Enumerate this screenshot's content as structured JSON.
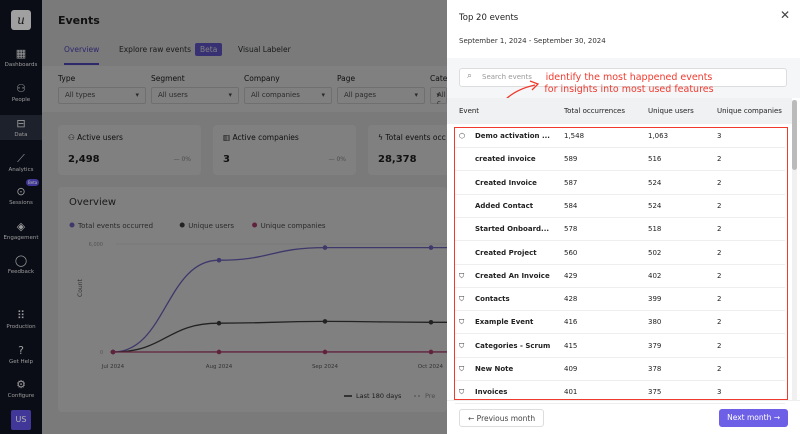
{
  "sidebar": {
    "logo": "u",
    "items": [
      {
        "label": "Dashboards",
        "icon": "▦"
      },
      {
        "label": "People",
        "icon": "⚇"
      },
      {
        "label": "Data",
        "icon": "⊟"
      },
      {
        "label": "Analytics",
        "icon": "⟋"
      },
      {
        "label": "Sessions",
        "icon": "⊙",
        "badge": "Beta"
      },
      {
        "label": "Engagement",
        "icon": "◈"
      },
      {
        "label": "Feedback",
        "icon": "◯"
      },
      {
        "label": "Production",
        "icon": "⠿"
      },
      {
        "label": "Get Help",
        "icon": "?"
      },
      {
        "label": "Configure",
        "icon": "⚙"
      }
    ],
    "avatar": "US",
    "active": "Data"
  },
  "main": {
    "title": "Events",
    "tabs": [
      {
        "label": "Overview"
      },
      {
        "label": "Explore raw events",
        "badge": "Beta"
      },
      {
        "label": "Visual Labeler"
      }
    ],
    "filters": [
      {
        "label": "Type",
        "value": "All types"
      },
      {
        "label": "Segment",
        "value": "All users"
      },
      {
        "label": "Company",
        "value": "All companies"
      },
      {
        "label": "Page",
        "value": "All pages"
      },
      {
        "label": "Categ",
        "value": "All c"
      }
    ],
    "cards": [
      {
        "label": "Active users",
        "value": "2,498",
        "delta": "— 0%"
      },
      {
        "label": "Active companies",
        "value": "3",
        "delta": "— 0%"
      },
      {
        "label": "Total events occ",
        "value": "28,378"
      }
    ],
    "overview_title": "Overview",
    "period_legend": [
      "Last 180 days",
      "Pre"
    ]
  },
  "chart_data": {
    "type": "line",
    "ylabel": "Count",
    "yticks": [
      "0",
      "6,000"
    ],
    "ylim": [
      0,
      6000
    ],
    "categories": [
      "Jul 2024",
      "Aug 2024",
      "Sep 2024",
      "Oct 2024"
    ],
    "series": [
      {
        "name": "Total events occurred",
        "color": "#7b6fd6",
        "values": [
          0,
          5100,
          5800,
          5800
        ]
      },
      {
        "name": "Unique users",
        "color": "#444444",
        "values": [
          0,
          1600,
          1700,
          1650
        ]
      },
      {
        "name": "Unique companies",
        "color": "#c2447a",
        "values": [
          0,
          3,
          3,
          3
        ]
      }
    ]
  },
  "drawer": {
    "title": "Top 20 events",
    "range": "September 1, 2024 - September 30, 2024",
    "search_placeholder": "Search events",
    "annotation": "identify the most happened events for insights into most used features",
    "columns": [
      "Event",
      "Total occurrences",
      "Unique users",
      "Unique companies"
    ],
    "rows": [
      {
        "icon": "cube",
        "name": "Demo activation ...",
        "total": "1,548",
        "users": "1,063",
        "companies": "3"
      },
      {
        "icon": "code",
        "name": "created invoice",
        "total": "589",
        "users": "516",
        "companies": "2"
      },
      {
        "icon": "code",
        "name": "Created Invoice",
        "total": "587",
        "users": "524",
        "companies": "2"
      },
      {
        "icon": "code",
        "name": "Added Contact",
        "total": "584",
        "users": "524",
        "companies": "2"
      },
      {
        "icon": "code",
        "name": "Started Onboard...",
        "total": "578",
        "users": "518",
        "companies": "2"
      },
      {
        "icon": "code",
        "name": "Created Project",
        "total": "560",
        "users": "502",
        "companies": "2"
      },
      {
        "icon": "tag",
        "name": "Created An Invoice",
        "total": "429",
        "users": "402",
        "companies": "2"
      },
      {
        "icon": "tag",
        "name": "Contacts",
        "total": "428",
        "users": "399",
        "companies": "2"
      },
      {
        "icon": "tag",
        "name": "Example Event",
        "total": "416",
        "users": "380",
        "companies": "2"
      },
      {
        "icon": "tag",
        "name": "Categories - Scrum",
        "total": "415",
        "users": "379",
        "companies": "2"
      },
      {
        "icon": "tag",
        "name": "New Note",
        "total": "409",
        "users": "378",
        "companies": "2"
      },
      {
        "icon": "tag",
        "name": "Invoices",
        "total": "401",
        "users": "375",
        "companies": "3"
      }
    ],
    "prev_label": "Previous month",
    "next_label": "Next month"
  }
}
